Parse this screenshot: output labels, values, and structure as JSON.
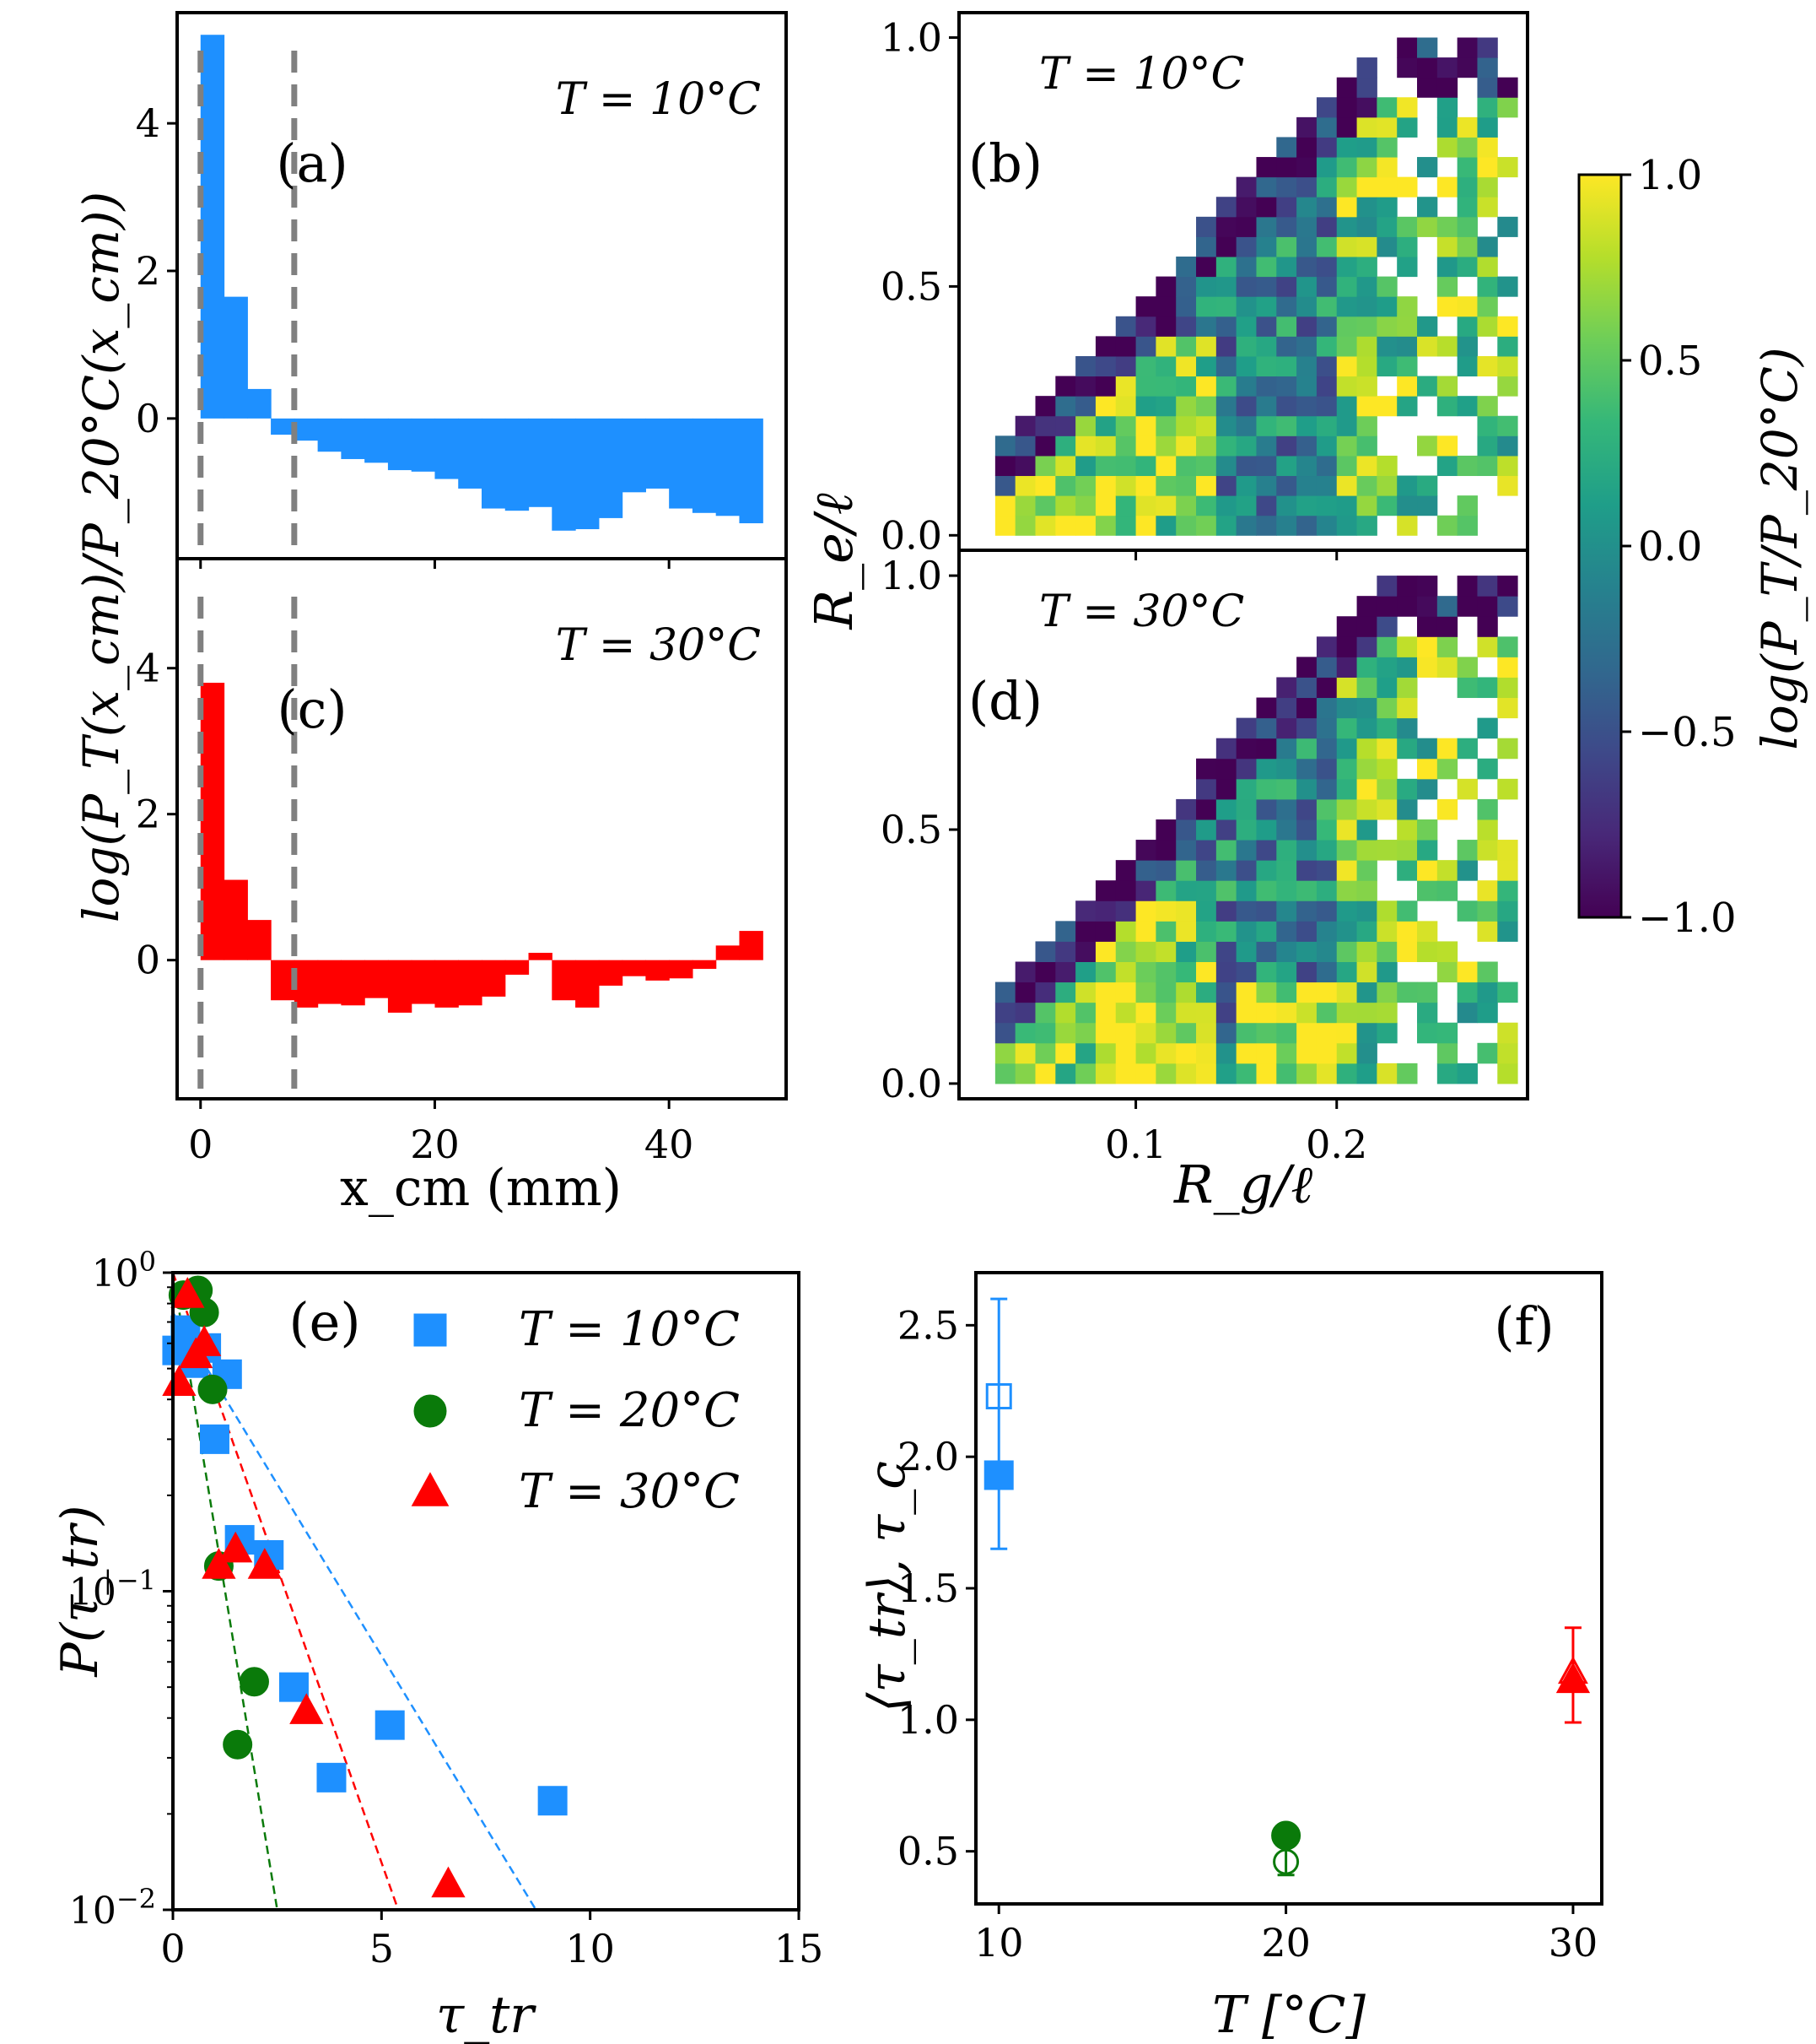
{
  "colors": {
    "blue": "#1e90ff",
    "red": "#ff0000",
    "green": "#0a7a0a",
    "dash_gray": "#808080",
    "viridis": [
      "#440154",
      "#482878",
      "#3e4989",
      "#31688e",
      "#26828e",
      "#1f9e89",
      "#35b779",
      "#6ece58",
      "#b5de2b",
      "#fde725"
    ]
  },
  "chart_data": [
    {
      "id": "a",
      "type": "bar",
      "panel_label": "(a)",
      "annotation": "T = 10°C",
      "ylabel": "log(P_T(x_cm)/P_20°C(x_cm))",
      "xlim": [
        -2,
        50
      ],
      "ylim": [
        -1.9,
        5.5
      ],
      "yticks": [
        "0",
        "2",
        "4"
      ],
      "bin_width": 2,
      "bin_starts": [
        0,
        2,
        4,
        6,
        8,
        10,
        12,
        14,
        16,
        18,
        20,
        22,
        24,
        26,
        28,
        30,
        32,
        34,
        36,
        38,
        40,
        42,
        44,
        46
      ],
      "values": [
        5.2,
        1.65,
        0.4,
        -0.22,
        -0.3,
        -0.45,
        -0.55,
        -0.6,
        -0.7,
        -0.72,
        -0.82,
        -0.95,
        -1.22,
        -1.25,
        -1.2,
        -1.52,
        -1.5,
        -1.35,
        -1.0,
        -0.95,
        -1.22,
        -1.28,
        -1.32,
        -1.42
      ],
      "vlines": [
        0,
        8
      ]
    },
    {
      "id": "c",
      "type": "bar",
      "panel_label": "(c)",
      "annotation": "T = 30°C",
      "xlabel": "x_cm (mm)",
      "xlim": [
        -2,
        50
      ],
      "ylim": [
        -1.9,
        5.5
      ],
      "xticks": [
        "0",
        "20",
        "40"
      ],
      "yticks": [
        "0",
        "2",
        "4"
      ],
      "bin_width": 2,
      "bin_starts": [
        0,
        2,
        4,
        6,
        8,
        10,
        12,
        14,
        16,
        18,
        20,
        22,
        24,
        26,
        28,
        30,
        32,
        34,
        36,
        38,
        40,
        42,
        44,
        46
      ],
      "values": [
        3.8,
        1.1,
        0.55,
        -0.55,
        -0.65,
        -0.6,
        -0.62,
        -0.52,
        -0.72,
        -0.6,
        -0.65,
        -0.62,
        -0.5,
        -0.2,
        0.1,
        -0.55,
        -0.65,
        -0.35,
        -0.22,
        -0.28,
        -0.25,
        -0.12,
        0.2,
        0.4
      ],
      "vlines": [
        0,
        8
      ]
    },
    {
      "id": "b",
      "type": "heatmap",
      "panel_label": "(b)",
      "annotation": "T = 10°C",
      "xlim": [
        0.012,
        0.295
      ],
      "ylim": [
        -0.03,
        1.05
      ],
      "yticks": [
        "0.0",
        "0.5",
        "1.0"
      ],
      "grid_x": [
        0.03,
        0.29
      ],
      "grid_y": [
        0.0,
        1.0
      ],
      "seed": 7
    },
    {
      "id": "d",
      "type": "heatmap",
      "panel_label": "(d)",
      "annotation": "T = 30°C",
      "xlabel": "R_g/ℓ",
      "shared_ylabel": "R_e/ℓ",
      "xlim": [
        0.012,
        0.295
      ],
      "ylim": [
        -0.03,
        1.05
      ],
      "xticks": [
        "0.1",
        "0.2"
      ],
      "yticks": [
        "0.0",
        "0.5",
        "1.0"
      ],
      "grid_x": [
        0.03,
        0.29
      ],
      "grid_y": [
        0.0,
        1.0
      ],
      "seed": 23
    },
    {
      "id": "colorbar",
      "type": "colorbar",
      "label": "log(P_T/P_20°C)",
      "range": [
        -1.0,
        1.0
      ],
      "ticks": [
        "1.0",
        "0.5",
        "0.0",
        "−0.5",
        "−1.0"
      ]
    },
    {
      "id": "e",
      "type": "scatter",
      "panel_label": "(e)",
      "xlabel": "τ_tr",
      "ylabel": "P(τ_tr)",
      "yscale": "log",
      "xlim": [
        0,
        15
      ],
      "ylim": [
        0.01,
        1.0
      ],
      "xticks": [
        "0",
        "5",
        "10",
        "15"
      ],
      "yticks": [
        "10^0",
        "10^-1",
        "10^-2"
      ],
      "series": [
        {
          "name": "T = 10°C",
          "marker": "square",
          "color": "blue",
          "x": [
            0.1,
            0.3,
            0.5,
            0.8,
            1.0,
            1.3,
            1.6,
            2.3,
            2.9,
            3.8,
            5.2,
            9.1
          ],
          "y": [
            0.57,
            0.66,
            0.52,
            0.58,
            0.3,
            0.48,
            0.145,
            0.13,
            0.05,
            0.026,
            0.038,
            0.022
          ],
          "fit": [
            0.75,
            0.01
          ]
        },
        {
          "name": "T = 20°C",
          "marker": "circle",
          "color": "green",
          "x": [
            0.25,
            0.6,
            0.75,
            0.95,
            1.1,
            1.55,
            1.95
          ],
          "y": [
            0.85,
            0.88,
            0.75,
            0.43,
            0.12,
            0.033,
            0.052
          ],
          "fit": [
            1.0,
            0.01
          ]
        },
        {
          "name": "T = 30°C",
          "marker": "triangle",
          "color": "red",
          "x": [
            0.15,
            0.35,
            0.55,
            0.75,
            1.1,
            1.5,
            2.2,
            3.2,
            6.6
          ],
          "y": [
            0.45,
            0.85,
            0.55,
            0.6,
            0.12,
            0.135,
            0.12,
            0.042,
            0.012
          ],
          "fit": [
            1.0,
            0.01
          ]
        }
      ],
      "fit_x_end": [
        8.7,
        2.5,
        5.4
      ]
    },
    {
      "id": "f",
      "type": "scatter",
      "panel_label": "(f)",
      "xlabel": "T [°C]",
      "ylabel": "⟨τ_tr⟩, τ_c",
      "xlim": [
        9.2,
        31
      ],
      "ylim": [
        0.3,
        2.7
      ],
      "xticks": [
        "10",
        "20",
        "30"
      ],
      "yticks": [
        "0.5",
        "1.0",
        "1.5",
        "2.0",
        "2.5"
      ],
      "points": [
        {
          "T": 10,
          "filled": 1.93,
          "open": 2.23,
          "err": [
            1.65,
            2.6
          ],
          "marker": "square",
          "color": "blue"
        },
        {
          "T": 20,
          "filled": 0.56,
          "open": 0.46,
          "err": [
            0.41,
            0.52
          ],
          "marker": "circle",
          "color": "green"
        },
        {
          "T": 30,
          "filled": 1.15,
          "open": 1.18,
          "err": [
            0.99,
            1.35
          ],
          "marker": "triangle",
          "color": "red"
        }
      ]
    }
  ]
}
